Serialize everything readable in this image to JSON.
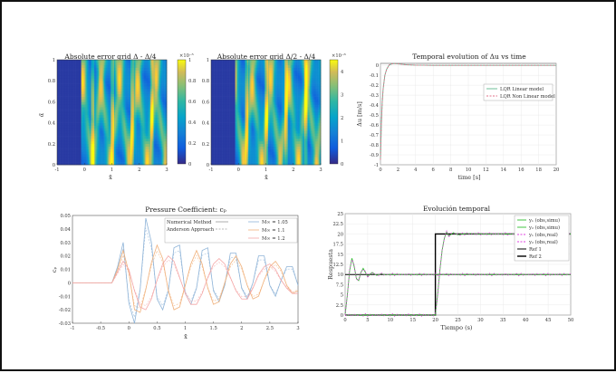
{
  "heatmap_left": {
    "title": "Absolute error grid Δ - Δ/4",
    "xlabel": "x̃",
    "ylabel": "α̃",
    "x_ticks": [
      "-1",
      "0",
      "1",
      "2",
      "3"
    ],
    "y_ticks": [
      "0",
      "0.2",
      "0.4",
      "0.6",
      "0.8",
      "1"
    ],
    "colorbar_exponent": "×10⁻⁵",
    "colorbar_ticks": [
      "0",
      "0.2",
      "0.4",
      "0.6",
      "0.8",
      "1"
    ]
  },
  "heatmap_mid": {
    "title": "Absolute error grid Δ/2 - Δ/4",
    "xlabel": "x̃",
    "x_ticks": [
      "-1",
      "0",
      "1",
      "2",
      "3"
    ],
    "y_ticks": [
      "0",
      "0.2",
      "0.4",
      "0.6",
      "0.8",
      "1"
    ],
    "colorbar_exponent": "×10⁻⁶",
    "colorbar_ticks": [
      "0",
      "1",
      "2",
      "3",
      "4"
    ]
  },
  "temporal": {
    "title": "Temporal evolution of Δu vs time",
    "xlabel": "time [s]",
    "ylabel": "Δu [m/s]",
    "x_ticks": [
      "0",
      "2",
      "4",
      "6",
      "8",
      "10",
      "12",
      "14",
      "16",
      "18",
      "20"
    ],
    "y_ticks": [
      "-1",
      "-0.9",
      "-0.8",
      "-0.7",
      "-0.6",
      "-0.5",
      "-0.4",
      "-0.3",
      "-0.2",
      "-0.1",
      "0"
    ],
    "legend": [
      "LQR Linear model",
      "LQR Non Linear model"
    ]
  },
  "pressure": {
    "title": "Pressure Coefficient: cₚ",
    "xlabel": "x̃",
    "ylabel": "cₚ",
    "x_ticks": [
      "-1",
      "-0.5",
      "0",
      "0.5",
      "1",
      "1.5",
      "2",
      "2.5",
      "3"
    ],
    "y_ticks": [
      "-0.03",
      "-0.02",
      "-0.01",
      "0",
      "0.01",
      "0.02",
      "0.03",
      "0.04",
      "0.05"
    ],
    "legend_methods": [
      "Numerical Method",
      "Anderson Approach"
    ],
    "legend_series": [
      "M∞ = 1.05",
      "M∞ = 1.1",
      "M∞ = 1.2"
    ]
  },
  "evolucion": {
    "title": "Evolución temporal",
    "xlabel": "Tiempo (s)",
    "ylabel": "Respuesta",
    "x_ticks": [
      "0",
      "5",
      "10",
      "15",
      "20",
      "25",
      "30",
      "35",
      "40",
      "45",
      "50"
    ],
    "y_ticks": [
      "0",
      "2.5",
      "5",
      "7.5",
      "10",
      "12.5",
      "15",
      "17.5",
      "20",
      "22.5",
      "25"
    ],
    "legend": [
      "y₁ (obs,simu)",
      "y₂ (obs,simu)",
      "y₁ (obs,real)",
      "y₂ (obs,real)",
      "Ref 1",
      "Ref 2"
    ]
  },
  "colors": {
    "parula_dark": "#352a87",
    "parula_yellow": "#f9fb0e",
    "lqr_linear": "#5fb88f",
    "lqr_nonlinear": "#e0708a",
    "m105": "#8fb4d8",
    "m11": "#f0b07a",
    "m12": "#f4a8a8",
    "y_simu": "#2ec02e",
    "y_real": "#e040e0",
    "ref": "#000000"
  },
  "chart_data": [
    {
      "type": "heatmap",
      "title": "Absolute error grid Δ - Δ/4",
      "xlim": [
        -1,
        3
      ],
      "ylim": [
        0,
        1
      ],
      "zlim": [
        0,
        1e-05
      ],
      "xlabel": "x̃",
      "ylabel": "α̃"
    },
    {
      "type": "heatmap",
      "title": "Absolute error grid Δ/2 - Δ/4",
      "xlim": [
        -1,
        3
      ],
      "ylim": [
        0,
        1
      ],
      "zlim": [
        0,
        4.5e-06
      ],
      "xlabel": "x̃"
    },
    {
      "type": "line",
      "title": "Temporal evolution of Δu vs time",
      "xlabel": "time [s]",
      "ylabel": "Δu [m/s]",
      "xlim": [
        0,
        20
      ],
      "ylim": [
        -1,
        0.02
      ],
      "series": [
        {
          "name": "LQR Linear model",
          "x": [
            0,
            0.1,
            0.2,
            0.3,
            0.5,
            0.7,
            1,
            1.3,
            1.6,
            2,
            2.5,
            3,
            4,
            6,
            8,
            10,
            12,
            14,
            16,
            18,
            20
          ],
          "y": [
            -0.95,
            -0.6,
            -0.38,
            -0.24,
            -0.1,
            -0.04,
            0.005,
            0.015,
            0.018,
            0.015,
            0.01,
            0.006,
            0.002,
            0,
            0,
            0,
            0,
            0,
            0,
            0,
            0
          ]
        },
        {
          "name": "LQR Non Linear model",
          "x": [
            0,
            0.1,
            0.2,
            0.3,
            0.5,
            0.7,
            1,
            1.3,
            1.6,
            2,
            2.5,
            3,
            4,
            6,
            8,
            10,
            12,
            14,
            16,
            18,
            20
          ],
          "y": [
            -0.95,
            -0.6,
            -0.38,
            -0.24,
            -0.1,
            -0.04,
            0.005,
            0.015,
            0.018,
            0.015,
            0.01,
            0.006,
            0.002,
            0,
            0,
            0,
            0,
            0,
            0,
            0,
            0
          ]
        }
      ]
    },
    {
      "type": "line",
      "title": "Pressure Coefficient: cₚ",
      "xlabel": "x̃",
      "ylabel": "cₚ",
      "xlim": [
        -1,
        3
      ],
      "ylim": [
        -0.03,
        0.05
      ],
      "series": [
        {
          "name": "M∞ = 1.05",
          "x": [
            -1,
            -0.3,
            -0.2,
            -0.1,
            0,
            0.1,
            0.2,
            0.3,
            0.4,
            0.5,
            0.6,
            0.7,
            0.8,
            0.9,
            1,
            1.1,
            1.2,
            1.3,
            1.4,
            1.5,
            1.6,
            1.7,
            1.8,
            1.9,
            2,
            2.1,
            2.2,
            2.3,
            2.4,
            2.5,
            2.6,
            2.7,
            2.8,
            2.9,
            3
          ],
          "y": [
            0,
            0,
            0.012,
            0.03,
            -0.015,
            -0.03,
            -0.005,
            0.048,
            0.03,
            -0.012,
            -0.02,
            -0.006,
            0.026,
            0.028,
            -0.008,
            -0.016,
            -0.004,
            0.024,
            0.026,
            -0.006,
            -0.014,
            -0.002,
            0.022,
            0.022,
            -0.004,
            -0.012,
            0,
            0.02,
            0.02,
            -0.002,
            -0.01,
            0.002,
            0.012,
            0.012,
            -0.002
          ]
        },
        {
          "name": "M∞ = 1.1",
          "x": [
            -1,
            -0.3,
            -0.2,
            -0.1,
            0,
            0.1,
            0.2,
            0.3,
            0.4,
            0.5,
            0.6,
            0.7,
            0.8,
            0.9,
            1,
            1.1,
            1.2,
            1.3,
            1.4,
            1.5,
            1.6,
            1.7,
            1.8,
            1.9,
            2,
            2.1,
            2.2,
            2.3,
            2.4,
            2.5,
            2.6,
            2.7,
            2.8,
            2.9,
            3
          ],
          "y": [
            0,
            0,
            0.01,
            0.024,
            0.008,
            -0.02,
            -0.022,
            -0.005,
            0.015,
            0.028,
            0.018,
            -0.006,
            -0.02,
            -0.018,
            -0.002,
            0.014,
            0.024,
            0.014,
            -0.004,
            -0.016,
            -0.014,
            0,
            0.014,
            0.02,
            0.012,
            -0.002,
            -0.012,
            -0.01,
            0.002,
            0.012,
            0.016,
            0.01,
            -0.002,
            -0.008,
            -0.006
          ]
        },
        {
          "name": "M∞ = 1.2",
          "x": [
            -1,
            -0.3,
            -0.2,
            -0.1,
            0,
            0.1,
            0.2,
            0.3,
            0.4,
            0.5,
            0.6,
            0.7,
            0.8,
            0.9,
            1,
            1.1,
            1.2,
            1.3,
            1.4,
            1.5,
            1.6,
            1.7,
            1.8,
            1.9,
            2,
            2.1,
            2.2,
            2.3,
            2.4,
            2.5,
            2.6,
            2.7,
            2.8,
            2.9,
            3
          ],
          "y": [
            0,
            0,
            0.008,
            0.016,
            0.01,
            -0.006,
            -0.018,
            -0.02,
            -0.012,
            0.002,
            0.014,
            0.02,
            0.016,
            0.004,
            -0.008,
            -0.016,
            -0.016,
            -0.008,
            0.004,
            0.014,
            0.018,
            0.014,
            0.004,
            -0.006,
            -0.012,
            -0.012,
            -0.004,
            0.006,
            0.012,
            0.014,
            0.01,
            0.002,
            -0.004,
            -0.008,
            -0.008
          ]
        }
      ]
    },
    {
      "type": "line",
      "title": "Evolución temporal",
      "xlabel": "Tiempo (s)",
      "ylabel": "Respuesta",
      "xlim": [
        0,
        50
      ],
      "ylim": [
        0,
        25
      ],
      "series": [
        {
          "name": "Ref 1",
          "x": [
            0,
            50
          ],
          "y": [
            10,
            10
          ]
        },
        {
          "name": "Ref 2",
          "x": [
            0,
            20,
            20,
            50
          ],
          "y": [
            0,
            0,
            20,
            20
          ]
        },
        {
          "name": "y₁ (obs,simu)",
          "x": [
            0,
            0.5,
            1,
            1.5,
            2,
            2.5,
            3,
            3.5,
            4,
            5,
            6,
            7,
            8,
            9,
            10,
            12,
            15,
            20,
            25,
            30,
            35,
            40,
            45,
            50
          ],
          "y": [
            0,
            5,
            11,
            14,
            12,
            9,
            8.5,
            10.5,
            11.5,
            9.5,
            10.5,
            9.8,
            10.2,
            9.9,
            10,
            10,
            10,
            10,
            10,
            10,
            10,
            10,
            10,
            10
          ]
        },
        {
          "name": "y₂ (obs,simu)",
          "x": [
            0,
            2,
            5,
            10,
            15,
            20,
            20.5,
            21,
            21.5,
            22,
            22.5,
            23,
            24,
            25,
            27,
            30,
            35,
            40,
            45,
            50
          ],
          "y": [
            0,
            0,
            0,
            0,
            0,
            0,
            5,
            11,
            16,
            19,
            20.5,
            19.5,
            20.3,
            19.8,
            20.1,
            20,
            20,
            20,
            20,
            20
          ]
        }
      ]
    }
  ]
}
